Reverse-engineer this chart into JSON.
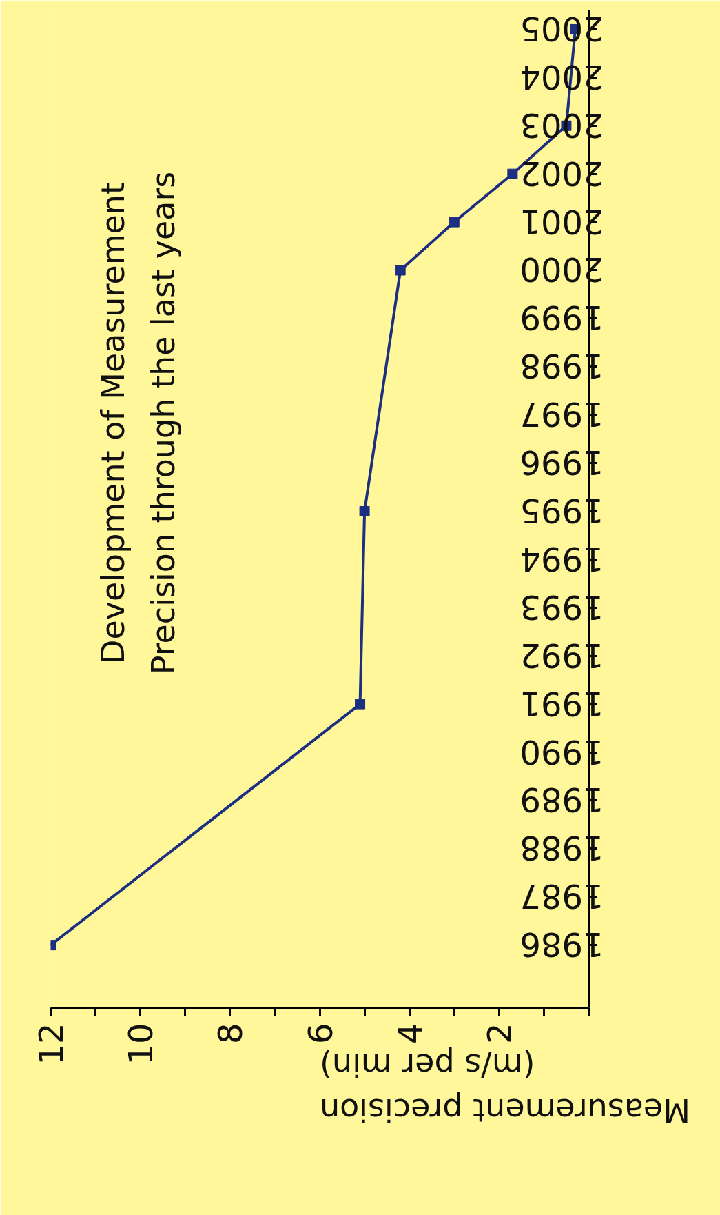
{
  "chart_data": {
    "type": "line",
    "title": "Development of Measurement\nPrecision through the last years",
    "xlabel": "Measurement precision\n(m/s per min)",
    "x": [
      12,
      5.1,
      5.0,
      4.2,
      3.0,
      1.7,
      0.5,
      0.3
    ],
    "series": [
      {
        "color": "#1c2f80",
        "values": [
          1986,
          1991,
          1995,
          2000,
          2001,
          2002,
          2003,
          2005
        ]
      }
    ],
    "xlim": [
      12,
      0
    ],
    "xticks": [
      {
        "value": 0,
        "label": null
      },
      {
        "value": 1,
        "label": null
      },
      2,
      {
        "value": 3,
        "label": null
      },
      4,
      {
        "value": 5,
        "label": null
      },
      6,
      {
        "value": 7,
        "label": null
      },
      8,
      {
        "value": 9,
        "label": null
      },
      10,
      {
        "value": 11,
        "label": null
      },
      12
    ],
    "ylim": [
      1984.7,
      2005.4
    ],
    "yticks": [
      1986,
      1987,
      1988,
      1989,
      1990,
      1991,
      1992,
      1993,
      1994,
      1995,
      1996,
      1997,
      1998,
      1999,
      2000,
      2001,
      2002,
      2003,
      2004,
      2005
    ],
    "marker": "square",
    "line_style": "solid",
    "grid": false
  }
}
